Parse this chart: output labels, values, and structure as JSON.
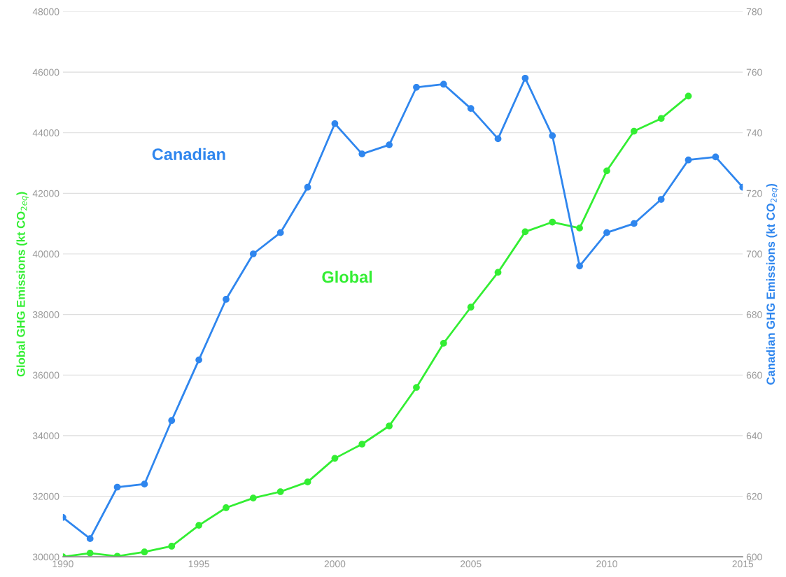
{
  "chart_data": {
    "type": "line",
    "ylabel": "Global GHG Emissions (kt CO$_{2eq}$)",
    "y2label": "Canadian GHG Emissions (kt CO$_{2eq}$)",
    "x": [
      1990,
      1991,
      1992,
      1993,
      1994,
      1995,
      1996,
      1997,
      1998,
      1999,
      2000,
      2001,
      2002,
      2003,
      2004,
      2005,
      2006,
      2007,
      2008,
      2009,
      2010,
      2011,
      2012,
      2013,
      2014,
      2015
    ],
    "series": [
      {
        "name": "Global",
        "color": "#33ee33",
        "values": [
          30000,
          30120,
          30020,
          30160,
          30350,
          31040,
          31620,
          31940,
          32150,
          32470,
          33250,
          33720,
          34320,
          35590,
          37050,
          38240,
          39390,
          40730,
          41050,
          40850,
          42740,
          44050,
          44470,
          45210,
          null,
          null
        ]
      },
      {
        "name": "Canadian",
        "color": "#2f86ee",
        "axis": "y2",
        "values": [
          613,
          606,
          623,
          624,
          645,
          665,
          685,
          700,
          707,
          722,
          743,
          733,
          736,
          755,
          756,
          748,
          738,
          758,
          739,
          696,
          707,
          710,
          718,
          731,
          732,
          722
        ]
      }
    ],
    "xlim": [
      1990,
      2015
    ],
    "xticks": [
      1990,
      1995,
      2000,
      2005,
      2010,
      2015
    ],
    "ylim": [
      30000,
      48000
    ],
    "yticks": [
      30000,
      32000,
      34000,
      36000,
      38000,
      40000,
      42000,
      44000,
      46000,
      48000
    ],
    "y2lim": [
      600,
      780
    ],
    "y2ticks": [
      600,
      620,
      640,
      660,
      680,
      700,
      720,
      740,
      760,
      780
    ],
    "grid": "y",
    "legend": false,
    "marker": "circle",
    "line_style": "solid"
  }
}
